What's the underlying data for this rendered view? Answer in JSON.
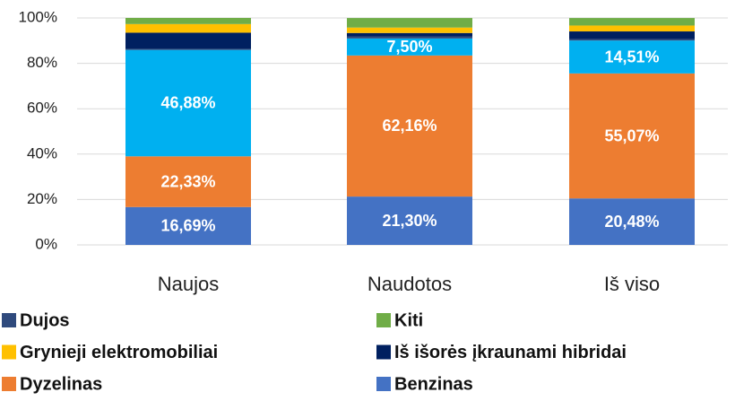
{
  "chart_data": {
    "type": "stacked_bar",
    "categories": [
      "Naujos",
      "Naudotos",
      "Iš viso"
    ],
    "ylim": [
      0,
      100
    ],
    "yticks": [
      {
        "value": 0,
        "label": "0%"
      },
      {
        "value": 20,
        "label": "20%"
      },
      {
        "value": 40,
        "label": "40%"
      },
      {
        "value": 60,
        "label": "60%"
      },
      {
        "value": 80,
        "label": "80%"
      },
      {
        "value": 100,
        "label": "100%"
      }
    ],
    "grid": true,
    "series": [
      {
        "name": "Benzinas",
        "color": "#4472c4",
        "values": [
          16.69,
          21.3,
          20.48
        ],
        "value_labels": [
          "16,69%",
          "21,30%",
          "20,48%"
        ]
      },
      {
        "name": "Dyzelinas",
        "color": "#ed7d31",
        "values": [
          22.33,
          62.16,
          55.07
        ],
        "value_labels": [
          "22,33%",
          "62,16%",
          "55,07%"
        ]
      },
      {
        "color": "#00b0f0",
        "values": [
          46.88,
          7.5,
          14.51
        ],
        "value_labels": [
          "46,88%",
          "7,50%",
          "14,51%"
        ]
      },
      {
        "name": "Dujos",
        "color": "#2f4a7d",
        "values": [
          0.4,
          0.8,
          0.6
        ]
      },
      {
        "name": "Iš išorės įkraunami hibridai",
        "color": "#002060",
        "values": [
          7.2,
          1.6,
          3.4
        ]
      },
      {
        "name": "Grynieji elektromobiliai",
        "color": "#ffc000",
        "values": [
          3.8,
          2.4,
          2.6
        ]
      },
      {
        "name": "Kiti",
        "color": "#70ad47",
        "values": [
          2.7,
          4.2,
          3.3
        ]
      }
    ]
  }
}
